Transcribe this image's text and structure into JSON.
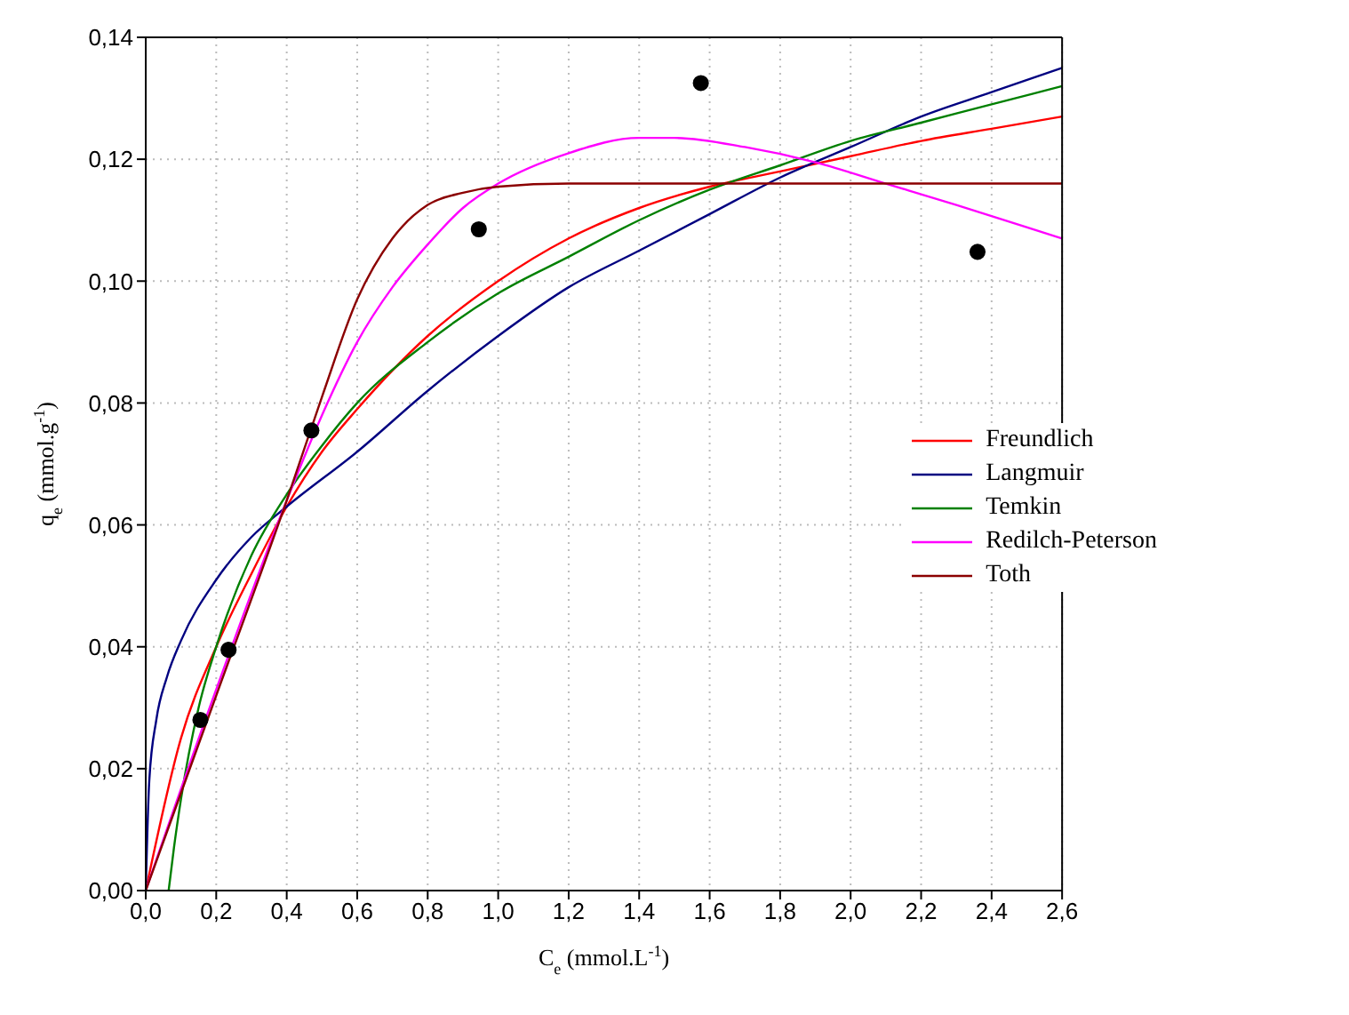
{
  "chart_data": {
    "type": "line",
    "xlabel": "C$_{e}$ (mmol.L$^{-1}$)",
    "ylabel": "q$_{e}$ (mmol.g$^{-1}$)",
    "xlim": [
      0,
      2.6
    ],
    "ylim": [
      0,
      0.14
    ],
    "xticks": [
      {
        "value": 0,
        "label": "0,0"
      },
      {
        "value": 0.2,
        "label": "0,2"
      },
      {
        "value": 0.4,
        "label": "0,4"
      },
      {
        "value": 0.6,
        "label": "0,6"
      },
      {
        "value": 0.8,
        "label": "0,8"
      },
      {
        "value": 1,
        "label": "1,0"
      },
      {
        "value": 1.2,
        "label": "1,2"
      },
      {
        "value": 1.4,
        "label": "1,4"
      },
      {
        "value": 1.6,
        "label": "1,6"
      },
      {
        "value": 1.8,
        "label": "1,8"
      },
      {
        "value": 2,
        "label": "2,0"
      },
      {
        "value": 2.2,
        "label": "2,2"
      },
      {
        "value": 2.4,
        "label": "2,4"
      },
      {
        "value": 2.6,
        "label": "2,6"
      }
    ],
    "yticks": [
      {
        "value": 0,
        "label": "0,00"
      },
      {
        "value": 0.02,
        "label": "0,02"
      },
      {
        "value": 0.04,
        "label": "0,04"
      },
      {
        "value": 0.06,
        "label": "0,06"
      },
      {
        "value": 0.08,
        "label": "0,08"
      },
      {
        "value": 0.1,
        "label": "0,10"
      },
      {
        "value": 0.12,
        "label": "0,12"
      },
      {
        "value": 0.14,
        "label": "0,14"
      }
    ],
    "grid": true,
    "legend": "right",
    "series": [
      {
        "type": "scatter",
        "color": "#000000",
        "x": [
          0.155,
          0.235,
          0.47,
          0.945,
          1.575,
          2.36
        ],
        "values": [
          0.028,
          0.0395,
          0.0755,
          0.1085,
          0.1325,
          0.1048
        ]
      },
      {
        "name": "Freundlich",
        "color": "#ff0000",
        "x": [
          0,
          0.1,
          0.2,
          0.3,
          0.4,
          0.5,
          0.6,
          0.8,
          1.0,
          1.2,
          1.4,
          1.6,
          1.8,
          2.0,
          2.2,
          2.4,
          2.6
        ],
        "values": [
          0,
          0.025,
          0.04,
          0.052,
          0.063,
          0.072,
          0.079,
          0.091,
          0.1,
          0.107,
          0.112,
          0.1155,
          0.118,
          0.1205,
          0.123,
          0.125,
          0.127
        ]
      },
      {
        "name": "Langmuir",
        "color": "#000080",
        "x": [
          0,
          0.01,
          0.03,
          0.06,
          0.1,
          0.2,
          0.3,
          0.4,
          0.6,
          0.8,
          1.0,
          1.2,
          1.4,
          1.6,
          1.8,
          2.0,
          2.2,
          2.4,
          2.6
        ],
        "values": [
          0,
          0.018,
          0.028,
          0.035,
          0.041,
          0.051,
          0.058,
          0.063,
          0.072,
          0.082,
          0.091,
          0.099,
          0.105,
          0.111,
          0.117,
          0.122,
          0.127,
          0.131,
          0.135
        ]
      },
      {
        "name": "Temkin",
        "color": "#008000",
        "x": [
          0.065,
          0.08,
          0.1,
          0.15,
          0.2,
          0.3,
          0.4,
          0.5,
          0.6,
          0.8,
          1.0,
          1.2,
          1.4,
          1.6,
          1.8,
          2.0,
          2.2,
          2.4,
          2.6
        ],
        "values": [
          0,
          0.007,
          0.015,
          0.03,
          0.04,
          0.055,
          0.065,
          0.073,
          0.08,
          0.09,
          0.098,
          0.104,
          0.11,
          0.115,
          0.119,
          0.123,
          0.126,
          0.129,
          0.132
        ]
      },
      {
        "name": "Redilch-Peterson",
        "color": "#ff00ff",
        "x": [
          0,
          0.2,
          0.4,
          0.5,
          0.6,
          0.7,
          0.8,
          0.9,
          1.0,
          1.2,
          1.4,
          1.5,
          1.7,
          1.9,
          2.1,
          2.3,
          2.6
        ],
        "values": [
          0,
          0.033,
          0.064,
          0.078,
          0.09,
          0.099,
          0.106,
          0.112,
          0.116,
          0.121,
          0.1235,
          0.1235,
          0.122,
          0.1195,
          0.116,
          0.1125,
          0.107
        ]
      },
      {
        "name": "Toth",
        "color": "#8b0000",
        "x": [
          0,
          0.2,
          0.4,
          0.5,
          0.6,
          0.7,
          0.8,
          0.9,
          1.0,
          1.2,
          1.6,
          2.6
        ],
        "values": [
          0,
          0.032,
          0.064,
          0.081,
          0.097,
          0.107,
          0.1125,
          0.1145,
          0.1155,
          0.116,
          0.116,
          0.116
        ]
      }
    ]
  }
}
